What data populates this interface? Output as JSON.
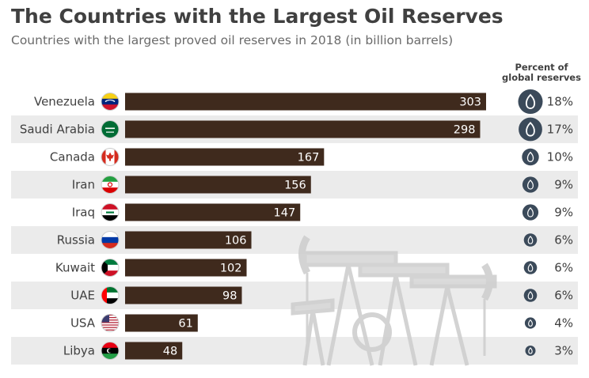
{
  "header": {
    "title": "The Countries with the Largest Oil Reserves",
    "subtitle": "Countries with the largest proved oil reserves in 2018 (in billion barrels)",
    "percent_header_line1": "Percent of",
    "percent_header_line2": "global reserves"
  },
  "colors": {
    "bar": "#3f2a1d",
    "row_band": "#ebebeb",
    "drop_circle": "#3b4a5a",
    "text": "#404040"
  },
  "chart_data": {
    "type": "bar",
    "orientation": "horizontal",
    "title": "The Countries with the Largest Oil Reserves",
    "subtitle": "Countries with the largest proved oil reserves in 2018 (in billion barrels)",
    "categories": [
      "Venezuela",
      "Saudi Arabia",
      "Canada",
      "Iran",
      "Iraq",
      "Russia",
      "Kuwait",
      "UAE",
      "USA",
      "Libya"
    ],
    "values": [
      303,
      298,
      167,
      156,
      147,
      106,
      102,
      98,
      61,
      48
    ],
    "percent_of_global_reserves": [
      "18%",
      "17%",
      "10%",
      "9%",
      "9%",
      "6%",
      "6%",
      "6%",
      "4%",
      "3%"
    ],
    "percent_values": [
      18,
      17,
      10,
      9,
      9,
      6,
      6,
      6,
      4,
      3
    ],
    "flag_icons": [
      "venezuela-flag-icon",
      "saudi-arabia-flag-icon",
      "canada-flag-icon",
      "iran-flag-icon",
      "iraq-flag-icon",
      "russia-flag-icon",
      "kuwait-flag-icon",
      "uae-flag-icon",
      "usa-flag-icon",
      "libya-flag-icon"
    ],
    "xlim": [
      0,
      303
    ],
    "grid": false,
    "legend": "none"
  }
}
